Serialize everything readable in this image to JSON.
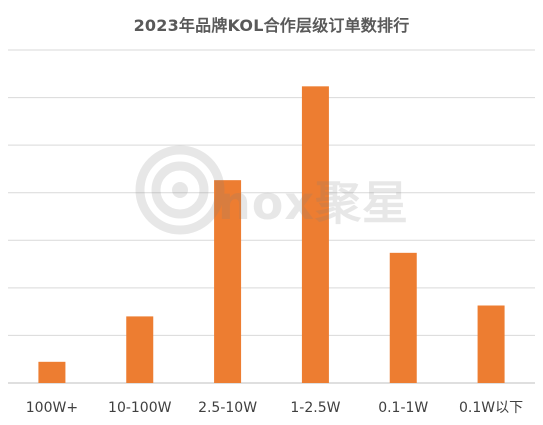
{
  "chart_data": {
    "type": "bar",
    "title": "2023年品牌KOL合作层级订单数排行",
    "categories": [
      "100W+",
      "10-100W",
      "2.5-10W",
      "1-2.5W",
      "0.1-1W",
      "0.1W以下"
    ],
    "values": [
      3.5,
      11,
      33.5,
      49,
      21.5,
      12.8
    ],
    "ylim": [
      0,
      55
    ],
    "grid": true,
    "xlabel": "",
    "ylabel": "",
    "colors": {
      "bar": "#ED7D31",
      "grid": "#D9D9D9",
      "text": "#404040",
      "title": "#595959"
    }
  },
  "watermark": {
    "text": "nox聚星"
  }
}
